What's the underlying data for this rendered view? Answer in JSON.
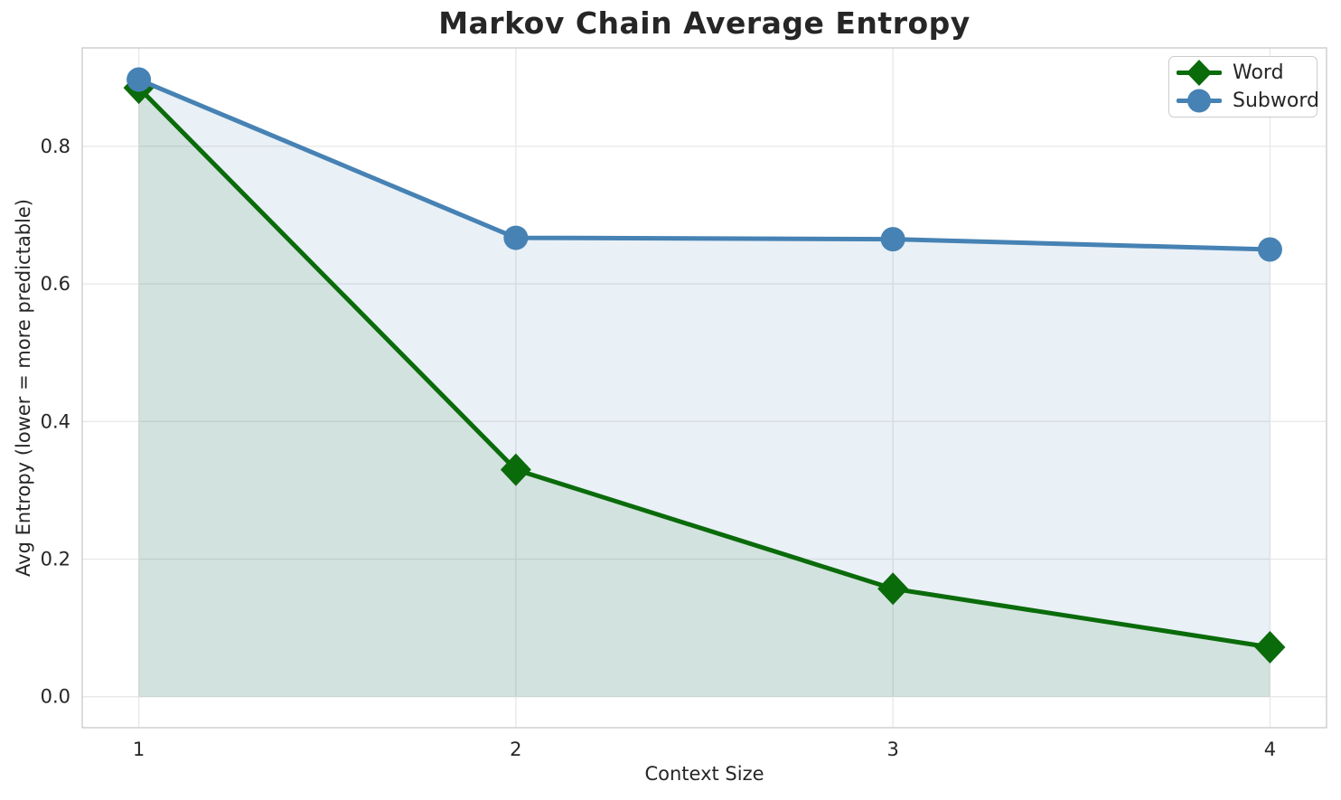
{
  "chart_data": {
    "type": "line",
    "title": "Markov Chain Average Entropy",
    "xlabel": "Context Size",
    "ylabel": "Avg Entropy (lower = more predictable)",
    "x": [
      1,
      2,
      3,
      4
    ],
    "x_tick_labels": [
      "1",
      "2",
      "3",
      "4"
    ],
    "y_ticks": [
      0.0,
      0.2,
      0.4,
      0.6,
      0.8
    ],
    "y_tick_labels": [
      "0.0",
      "0.2",
      "0.4",
      "0.6",
      "0.8"
    ],
    "xlim": [
      0.85,
      4.15
    ],
    "ylim": [
      -0.045,
      0.943
    ],
    "grid": true,
    "legend_position": "upper right",
    "fill_baseline": 0,
    "series": [
      {
        "name": "Word",
        "marker": "diamond",
        "color": "#0a6b0a",
        "fill_alpha": 0.1,
        "line_width": 5,
        "values": [
          0.885,
          0.33,
          0.157,
          0.072
        ]
      },
      {
        "name": "Subword",
        "marker": "circle",
        "color": "#4682b4",
        "fill_alpha": 0.12,
        "line_width": 5,
        "values": [
          0.897,
          0.667,
          0.665,
          0.65
        ]
      }
    ]
  },
  "colors": {
    "text": "#262626",
    "grid": "#e9e9e9",
    "spine": "#cccccc",
    "legend_border": "#cccccc",
    "background": "#ffffff"
  }
}
